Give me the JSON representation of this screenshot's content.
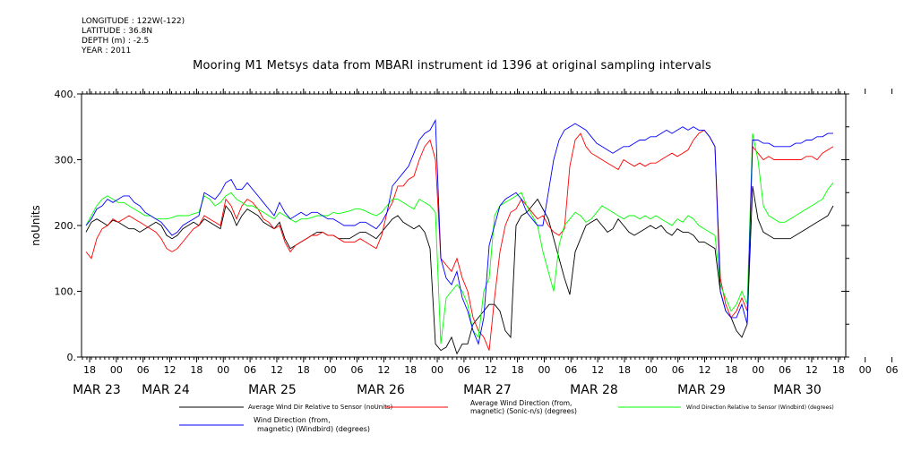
{
  "metadata": {
    "lines": [
      "LONGITUDE : 122W(-122)",
      "LATITUDE : 36.8N",
      "DEPTH (m) : -2.5",
      "YEAR : 2011"
    ]
  },
  "chart_data": {
    "type": "line",
    "title": "Mooring M1 Metsys data from MBARI instrument id 1396 at original sampling intervals",
    "ylabel": "noUnits",
    "xlabel": "",
    "ylim": [
      0,
      400
    ],
    "yticks": [
      "0.",
      "100.",
      "200.",
      "300.",
      "400."
    ],
    "xlim_hours_note": "",
    "hour_tick_labels": [
      "18",
      "00",
      "06",
      "12",
      "18",
      "00",
      "06",
      "12",
      "18",
      "00",
      "06",
      "12",
      "18",
      "00",
      "06",
      "12",
      "18",
      "00",
      "06",
      "12",
      "18",
      "00",
      "06",
      "12",
      "18",
      "00",
      "06",
      "12",
      "18",
      "00",
      "06",
      "12"
    ],
    "day_labels": [
      "MAR 23",
      "MAR 24",
      "MAR 25",
      "MAR 26",
      "MAR 27",
      "MAR 28",
      "MAR 29",
      "MAR 30"
    ],
    "grid": false,
    "legend": "bottom",
    "series": [
      {
        "name": "Average Wind Dir Relative to Sensor (noUnits)",
        "color": "#000000",
        "values": [
          190,
          205,
          210,
          205,
          200,
          208,
          205,
          200,
          195,
          195,
          190,
          195,
          200,
          205,
          200,
          185,
          180,
          185,
          195,
          200,
          205,
          200,
          210,
          205,
          200,
          195,
          230,
          220,
          200,
          215,
          225,
          220,
          215,
          205,
          200,
          195,
          205,
          180,
          165,
          170,
          175,
          180,
          185,
          190,
          190,
          185,
          185,
          180,
          180,
          180,
          185,
          190,
          190,
          185,
          180,
          190,
          200,
          210,
          215,
          205,
          200,
          195,
          200,
          190,
          165,
          20,
          10,
          15,
          30,
          5,
          20,
          20,
          50,
          60,
          70,
          80,
          80,
          70,
          40,
          30,
          200,
          215,
          220,
          230,
          240,
          225,
          210,
          180,
          150,
          120,
          95,
          160,
          180,
          200,
          205,
          210,
          200,
          190,
          195,
          210,
          200,
          190,
          185,
          190,
          195,
          200,
          195,
          200,
          190,
          185,
          195,
          190,
          190,
          185,
          175,
          175,
          170,
          165,
          100,
          70,
          60,
          40,
          30,
          50,
          260,
          210,
          190,
          185,
          180,
          180,
          180,
          180,
          185,
          190,
          195,
          200,
          205,
          210,
          215,
          230
        ]
      },
      {
        "name": "Average Wind Direction (from, magnetic) (Sonic-n/s) (degrees)",
        "color": "#ff0000",
        "values": [
          160,
          150,
          180,
          195,
          200,
          210,
          205,
          210,
          215,
          210,
          205,
          200,
          195,
          190,
          180,
          165,
          160,
          165,
          175,
          185,
          195,
          200,
          215,
          210,
          205,
          200,
          240,
          230,
          210,
          230,
          240,
          235,
          225,
          210,
          205,
          195,
          200,
          175,
          160,
          170,
          175,
          180,
          185,
          185,
          190,
          185,
          185,
          180,
          175,
          175,
          175,
          180,
          175,
          170,
          165,
          185,
          220,
          235,
          260,
          260,
          270,
          275,
          300,
          320,
          330,
          300,
          150,
          140,
          130,
          150,
          120,
          100,
          60,
          40,
          30,
          10,
          90,
          160,
          200,
          220,
          225,
          240,
          230,
          220,
          210,
          215,
          200,
          190,
          185,
          195,
          290,
          330,
          340,
          320,
          310,
          305,
          300,
          295,
          290,
          285,
          300,
          295,
          290,
          295,
          290,
          295,
          295,
          300,
          305,
          310,
          305,
          310,
          315,
          330,
          340,
          345,
          335,
          320,
          120,
          80,
          60,
          70,
          90,
          70,
          320,
          310,
          300,
          305,
          300,
          300,
          300,
          300,
          300,
          300,
          305,
          305,
          300,
          310,
          315,
          320
        ]
      },
      {
        "name": "Wind Direction Relative to Sensor (Windbird) (degrees)",
        "color": "#00ff00",
        "values": [
          200,
          215,
          230,
          240,
          245,
          240,
          235,
          235,
          230,
          225,
          220,
          215,
          215,
          210,
          210,
          210,
          212,
          215,
          215,
          215,
          218,
          220,
          245,
          240,
          230,
          235,
          245,
          250,
          240,
          235,
          230,
          230,
          225,
          220,
          215,
          210,
          220,
          215,
          210,
          205,
          210,
          210,
          212,
          215,
          215,
          215,
          220,
          218,
          220,
          222,
          225,
          225,
          222,
          218,
          215,
          220,
          230,
          240,
          240,
          235,
          230,
          225,
          240,
          235,
          230,
          220,
          20,
          90,
          100,
          110,
          100,
          80,
          40,
          30,
          100,
          120,
          215,
          230,
          235,
          240,
          245,
          250,
          230,
          215,
          200,
          160,
          130,
          100,
          170,
          200,
          210,
          220,
          215,
          205,
          210,
          220,
          230,
          225,
          220,
          215,
          210,
          215,
          215,
          210,
          215,
          210,
          215,
          210,
          205,
          200,
          210,
          205,
          215,
          210,
          200,
          195,
          190,
          185,
          110,
          90,
          70,
          80,
          100,
          80,
          340,
          300,
          230,
          215,
          210,
          205,
          205,
          210,
          215,
          220,
          225,
          230,
          235,
          240,
          255,
          265
        ]
      },
      {
        "name": "Wind Direction (from, magnetic) (Windbird) (degrees)",
        "color": "#0000ff",
        "values": [
          200,
          210,
          225,
          230,
          240,
          235,
          240,
          245,
          245,
          235,
          230,
          220,
          215,
          210,
          205,
          195,
          185,
          190,
          200,
          205,
          210,
          215,
          250,
          245,
          240,
          250,
          265,
          270,
          255,
          255,
          265,
          255,
          245,
          235,
          225,
          215,
          235,
          220,
          210,
          215,
          220,
          215,
          220,
          220,
          215,
          210,
          210,
          205,
          200,
          200,
          200,
          205,
          205,
          200,
          195,
          205,
          220,
          260,
          270,
          280,
          290,
          310,
          330,
          340,
          345,
          360,
          150,
          120,
          110,
          130,
          90,
          70,
          40,
          20,
          60,
          170,
          200,
          230,
          240,
          245,
          250,
          240,
          220,
          210,
          200,
          200,
          250,
          300,
          330,
          345,
          350,
          355,
          350,
          345,
          335,
          325,
          320,
          315,
          310,
          315,
          320,
          320,
          325,
          330,
          330,
          335,
          335,
          340,
          345,
          340,
          345,
          350,
          345,
          350,
          345,
          345,
          335,
          320,
          100,
          70,
          60,
          60,
          80,
          50,
          330,
          330,
          325,
          325,
          320,
          320,
          320,
          320,
          325,
          325,
          330,
          330,
          335,
          335,
          340,
          340
        ]
      }
    ],
    "legend_labels": {
      "s0": "Average Wind Dir Relative to Sensor (noUnits)",
      "s1a": "Average Wind Direction (from,",
      "s1b": "magnetic) (Sonic-n/s) (degrees)",
      "s2": "Wind Direction Relative to Sensor (Windbird) (degrees)",
      "s3a": "Wind Direction (from,",
      "s3b": "magnetic) (Windbird) (degrees)"
    }
  }
}
